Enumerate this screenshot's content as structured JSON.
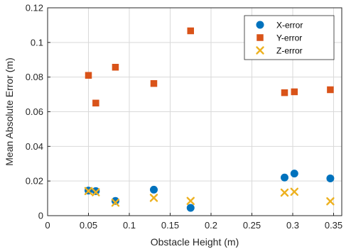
{
  "chart_data": {
    "type": "scatter",
    "xlabel": "Obstacle Height (m)",
    "ylabel": "Mean Absolute Error (m)",
    "xlim": [
      0,
      0.36
    ],
    "ylim": [
      0,
      0.12
    ],
    "x_ticks": [
      0,
      0.05,
      0.1,
      0.15,
      0.2,
      0.25,
      0.3,
      0.35
    ],
    "x_tick_labels": [
      "0",
      "0.05",
      "0.1",
      "0.15",
      "0.2",
      "0.25",
      "0.3",
      "0.35"
    ],
    "y_ticks": [
      0,
      0.02,
      0.04,
      0.06,
      0.08,
      0.1,
      0.12
    ],
    "y_tick_labels": [
      "0",
      "0.02",
      "0.04",
      "0.06",
      "0.08",
      "0.1",
      "0.12"
    ],
    "grid": true,
    "legend_position": "top-right",
    "series": [
      {
        "name": "X-error",
        "marker": "circle",
        "color": "#0072BD",
        "x": [
          0.05,
          0.059,
          0.083,
          0.13,
          0.175,
          0.29,
          0.302,
          0.346
        ],
        "y": [
          0.0145,
          0.0142,
          0.0085,
          0.015,
          0.0045,
          0.022,
          0.0243,
          0.0215
        ]
      },
      {
        "name": "Y-error",
        "marker": "square",
        "color": "#D95319",
        "x": [
          0.05,
          0.059,
          0.083,
          0.13,
          0.175,
          0.29,
          0.302,
          0.346
        ],
        "y": [
          0.081,
          0.065,
          0.0857,
          0.0763,
          0.1067,
          0.071,
          0.0715,
          0.0727
        ]
      },
      {
        "name": "Z-error",
        "marker": "x",
        "color": "#EDB120",
        "x": [
          0.05,
          0.059,
          0.083,
          0.13,
          0.175,
          0.29,
          0.302,
          0.346
        ],
        "y": [
          0.0142,
          0.0135,
          0.0075,
          0.0103,
          0.0085,
          0.0133,
          0.0138,
          0.0083
        ]
      }
    ]
  }
}
